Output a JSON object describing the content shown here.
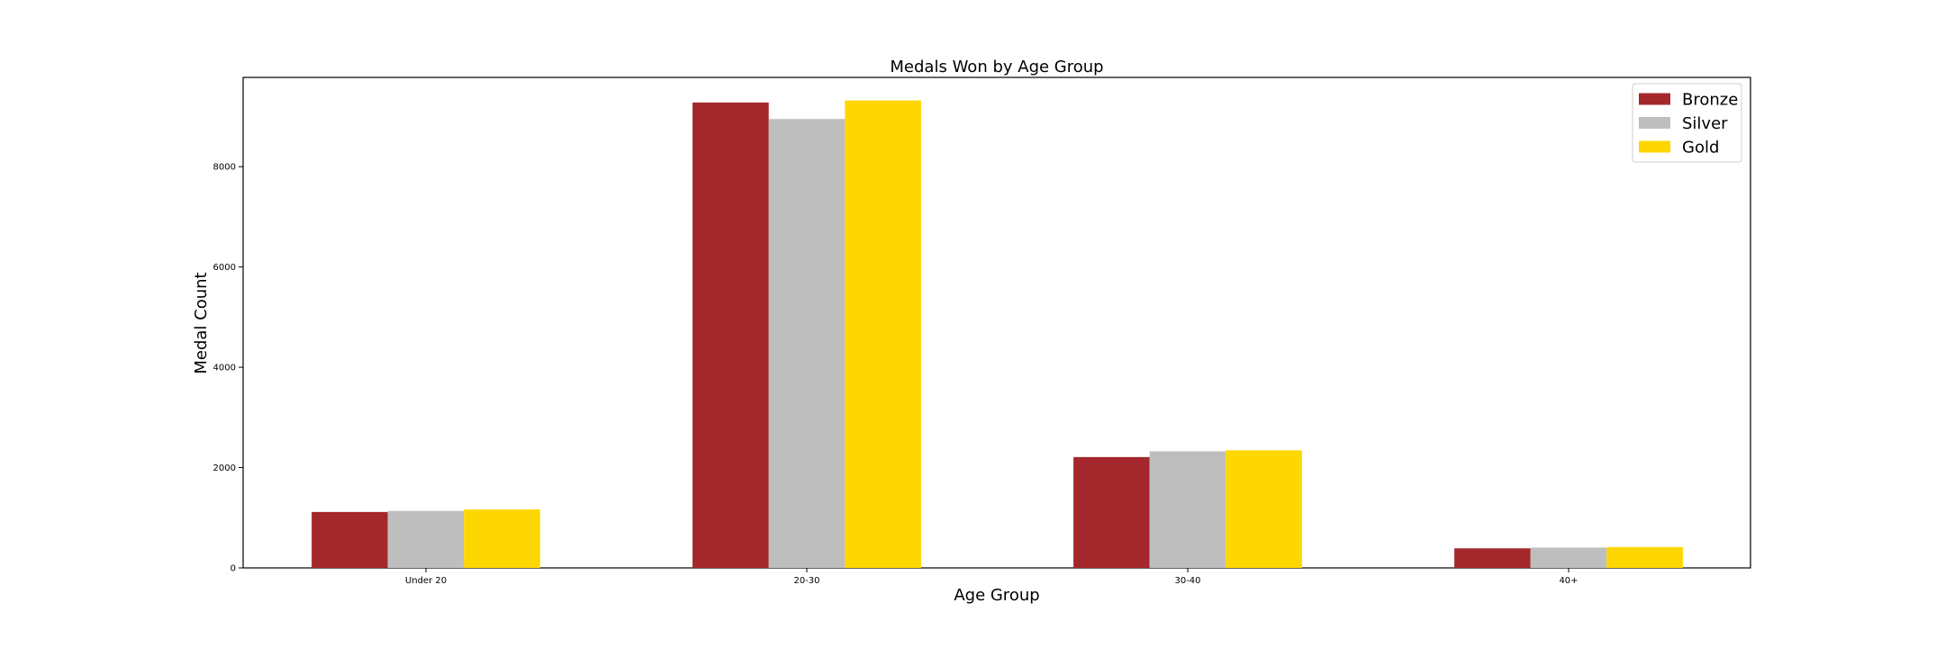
{
  "chart_data": {
    "type": "bar",
    "title": "Medals Won by Age Group",
    "xlabel": "Age Group",
    "ylabel": "Medal Count",
    "categories": [
      "Under 20",
      "20-30",
      "30-40",
      "40+"
    ],
    "series": [
      {
        "name": "Bronze",
        "color": "#a4282b",
        "values": [
          1115,
          9280,
          2210,
          390
        ]
      },
      {
        "name": "Silver",
        "color": "#bebebe",
        "values": [
          1135,
          8950,
          2325,
          405
        ]
      },
      {
        "name": "Gold",
        "color": "#ffd700",
        "values": [
          1165,
          9320,
          2345,
          415
        ]
      }
    ],
    "yticks": [
      0,
      2000,
      4000,
      6000,
      8000
    ],
    "ylim": [
      0,
      9780
    ],
    "legend": "top-right",
    "grid": false
  }
}
